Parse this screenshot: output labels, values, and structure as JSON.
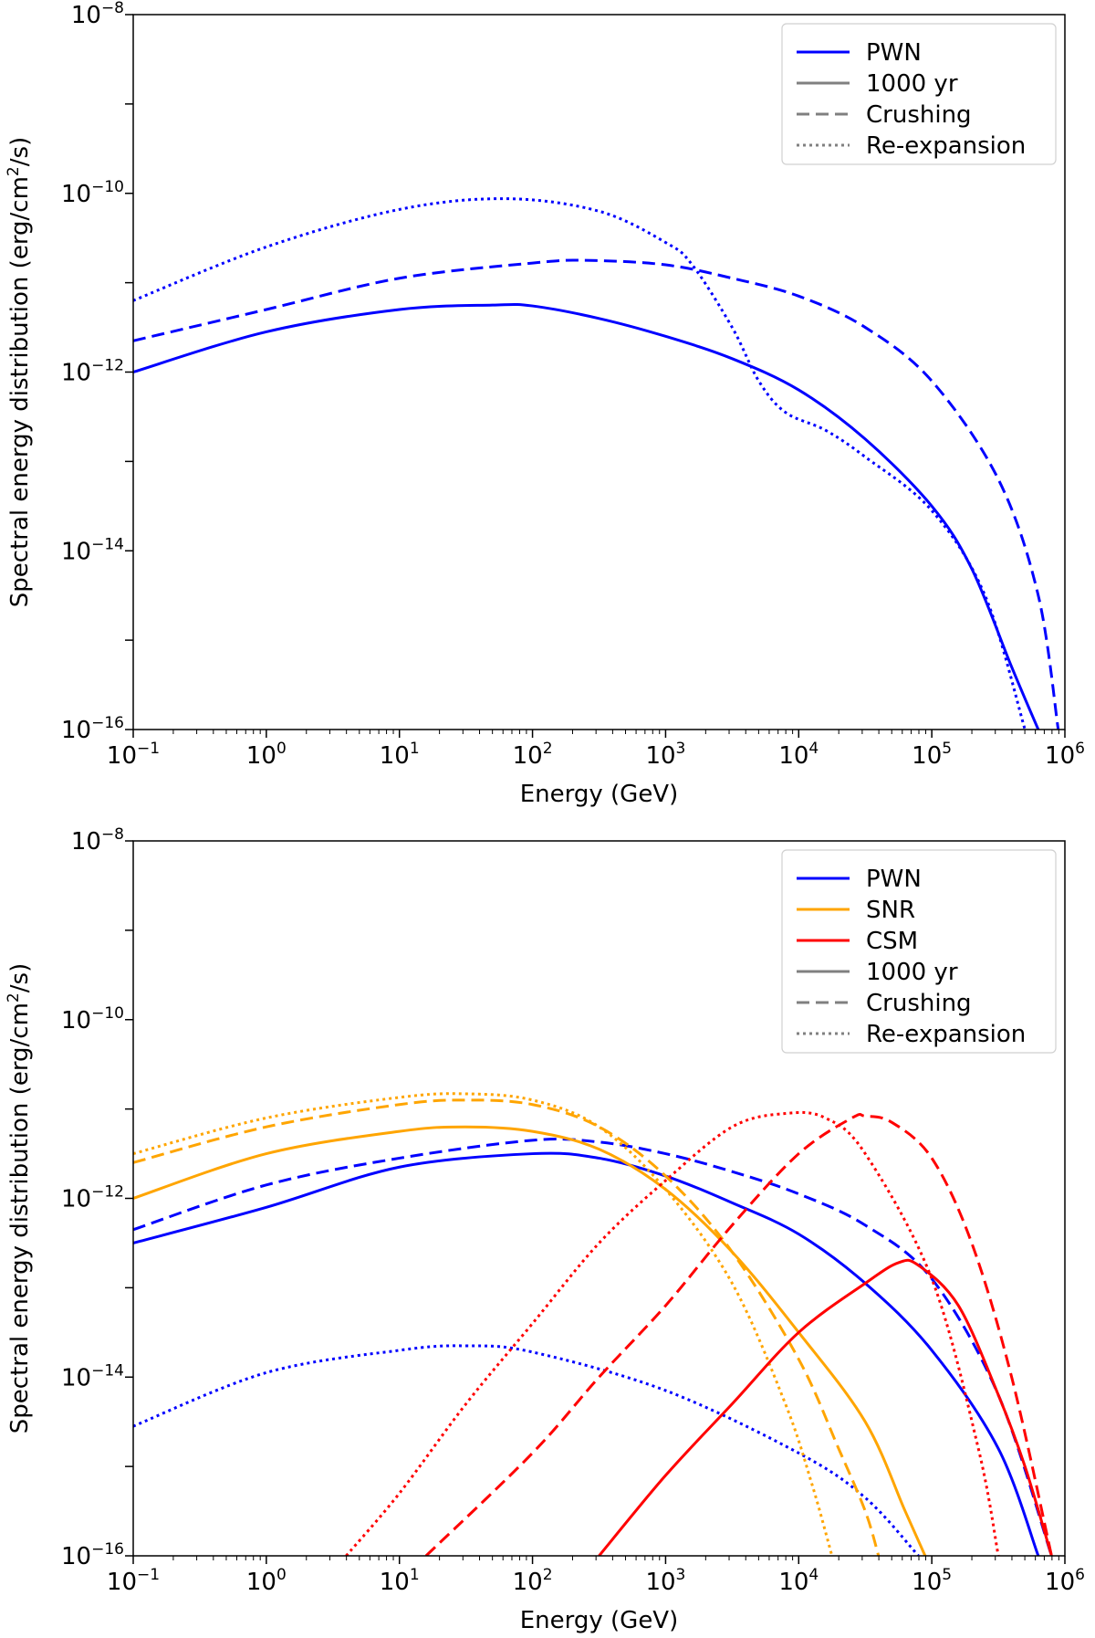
{
  "colors": {
    "PWN": "#0000ff",
    "SNR": "#ffa500",
    "CSM": "#ff0000",
    "neutral": "#808080"
  },
  "chart_data": [
    {
      "type": "line",
      "title": "",
      "xlabel": "Energy (GeV)",
      "ylabel_parts": {
        "pre": "Spectral energy distribution (erg/cm",
        "sup": "2",
        "post": "/s)"
      },
      "xscale": "log",
      "yscale": "log",
      "xlim_exp": [
        -1,
        6
      ],
      "ylim_exp": [
        -16,
        -8
      ],
      "x_ticks": [
        {
          "base": "10",
          "exp": "−1"
        },
        {
          "base": "10",
          "exp": "0"
        },
        {
          "base": "10",
          "exp": "1"
        },
        {
          "base": "10",
          "exp": "2"
        },
        {
          "base": "10",
          "exp": "3"
        },
        {
          "base": "10",
          "exp": "4"
        },
        {
          "base": "10",
          "exp": "5"
        },
        {
          "base": "10",
          "exp": "6"
        }
      ],
      "y_ticks": [
        {
          "value_exp": -16,
          "base": "10",
          "exp": "−16"
        },
        {
          "value_exp": -14,
          "base": "10",
          "exp": "−14"
        },
        {
          "value_exp": -12,
          "base": "10",
          "exp": "−12"
        },
        {
          "value_exp": -10,
          "base": "10",
          "exp": "−10"
        },
        {
          "value_exp": -8,
          "base": "10",
          "exp": "−8"
        }
      ],
      "legend": [
        "PWN",
        "1000 yr",
        "Crushing",
        "Re-expansion"
      ],
      "legend_styles": [
        "PWN",
        "solid",
        "dashed",
        "dotted"
      ],
      "series": [
        {
          "name": "PWN",
          "phase": "1000 yr",
          "log_x": [
            -1,
            0,
            1,
            1.7,
            2,
            2.5,
            3,
            3.5,
            4,
            4.5,
            5,
            5.3,
            5.6,
            5.8
          ],
          "log_y": [
            -12,
            -11.55,
            -11.3,
            -11.25,
            -11.26,
            -11.4,
            -11.6,
            -11.85,
            -12.2,
            -12.75,
            -13.5,
            -14.2,
            -15.3,
            -16
          ]
        },
        {
          "name": "PWN",
          "phase": "Crushing",
          "log_x": [
            -1,
            0,
            1,
            2,
            2.4,
            3,
            3.5,
            4,
            4.5,
            5,
            5.5,
            5.8,
            5.95
          ],
          "log_y": [
            -11.65,
            -11.3,
            -10.95,
            -10.78,
            -10.75,
            -10.8,
            -10.95,
            -11.15,
            -11.5,
            -12.1,
            -13.2,
            -14.5,
            -16
          ]
        },
        {
          "name": "PWN",
          "phase": "Re-expansion",
          "log_x": [
            -1,
            0,
            1,
            1.8,
            2.5,
            3,
            3.2,
            3.5,
            3.7,
            3.9,
            4.2,
            4.5,
            5,
            5.4,
            5.7
          ],
          "log_y": [
            -11.2,
            -10.6,
            -10.18,
            -10.06,
            -10.2,
            -10.55,
            -10.8,
            -11.5,
            -12.1,
            -12.45,
            -12.65,
            -12.95,
            -13.55,
            -14.5,
            -16
          ]
        }
      ]
    },
    {
      "type": "line",
      "title": "",
      "xlabel": "Energy (GeV)",
      "ylabel_parts": {
        "pre": "Spectral energy distribution (erg/cm",
        "sup": "2",
        "post": "/s)"
      },
      "xscale": "log",
      "yscale": "log",
      "xlim_exp": [
        -1,
        6
      ],
      "ylim_exp": [
        -16,
        -8
      ],
      "x_ticks": [
        {
          "base": "10",
          "exp": "−1"
        },
        {
          "base": "10",
          "exp": "0"
        },
        {
          "base": "10",
          "exp": "1"
        },
        {
          "base": "10",
          "exp": "2"
        },
        {
          "base": "10",
          "exp": "3"
        },
        {
          "base": "10",
          "exp": "4"
        },
        {
          "base": "10",
          "exp": "5"
        },
        {
          "base": "10",
          "exp": "6"
        }
      ],
      "y_ticks": [
        {
          "value_exp": -16,
          "base": "10",
          "exp": "−16"
        },
        {
          "value_exp": -14,
          "base": "10",
          "exp": "−14"
        },
        {
          "value_exp": -12,
          "base": "10",
          "exp": "−12"
        },
        {
          "value_exp": -10,
          "base": "10",
          "exp": "−10"
        },
        {
          "value_exp": -8,
          "base": "10",
          "exp": "−8"
        }
      ],
      "legend": [
        "PWN",
        "SNR",
        "CSM",
        "1000 yr",
        "Crushing",
        "Re-expansion"
      ],
      "legend_styles": [
        "PWN",
        "SNR",
        "CSM",
        "solid",
        "dashed",
        "dotted"
      ],
      "series": [
        {
          "name": "PWN",
          "phase": "1000 yr",
          "log_x": [
            -1,
            0,
            1,
            2,
            2.5,
            3,
            3.5,
            4,
            4.5,
            5,
            5.5,
            5.8
          ],
          "log_y": [
            -12.5,
            -12.1,
            -11.65,
            -11.5,
            -11.55,
            -11.75,
            -12.05,
            -12.4,
            -12.95,
            -13.7,
            -14.8,
            -16
          ]
        },
        {
          "name": "PWN",
          "phase": "Crushing",
          "log_x": [
            -1,
            0,
            1,
            2,
            2.5,
            3,
            3.5,
            4,
            4.5,
            5,
            5.5,
            5.9
          ],
          "log_y": [
            -12.35,
            -11.85,
            -11.55,
            -11.35,
            -11.37,
            -11.5,
            -11.7,
            -11.95,
            -12.3,
            -12.9,
            -14.2,
            -16
          ]
        },
        {
          "name": "PWN",
          "phase": "Re-expansion",
          "log_x": [
            -1,
            0,
            1,
            1.5,
            2,
            3,
            4,
            4.5,
            4.9
          ],
          "log_y": [
            -14.55,
            -13.95,
            -13.7,
            -13.65,
            -13.72,
            -14.15,
            -14.85,
            -15.35,
            -16
          ]
        },
        {
          "name": "SNR",
          "phase": "1000 yr",
          "log_x": [
            -1,
            0,
            1,
            1.5,
            2,
            2.5,
            3,
            3.5,
            4,
            4.5,
            4.8,
            4.95
          ],
          "log_y": [
            -12,
            -11.5,
            -11.25,
            -11.2,
            -11.25,
            -11.45,
            -11.9,
            -12.6,
            -13.5,
            -14.5,
            -15.5,
            -16
          ]
        },
        {
          "name": "SNR",
          "phase": "Crushing",
          "log_x": [
            -1,
            0,
            1,
            1.5,
            2,
            2.5,
            3,
            3.5,
            4,
            4.3,
            4.5,
            4.6
          ],
          "log_y": [
            -11.6,
            -11.2,
            -10.95,
            -10.9,
            -10.95,
            -11.2,
            -11.75,
            -12.6,
            -13.8,
            -14.8,
            -15.5,
            -16
          ]
        },
        {
          "name": "SNR",
          "phase": "Re-expansion",
          "log_x": [
            -1,
            0,
            1,
            1.5,
            2,
            2.5,
            3,
            3.5,
            3.9,
            4.1,
            4.25
          ],
          "log_y": [
            -11.5,
            -11.1,
            -10.87,
            -10.83,
            -10.9,
            -11.2,
            -11.9,
            -12.95,
            -14.3,
            -15.2,
            -16
          ]
        },
        {
          "name": "CSM",
          "phase": "1000 yr",
          "log_x": [
            2.5,
            3,
            3.5,
            4,
            4.5,
            4.75,
            4.9,
            5.2,
            5.5,
            5.7,
            5.9
          ],
          "log_y": [
            -16,
            -15.1,
            -14.3,
            -13.5,
            -12.95,
            -12.72,
            -12.75,
            -13.2,
            -14.2,
            -15,
            -16
          ]
        },
        {
          "name": "CSM",
          "phase": "Crushing",
          "log_x": [
            1.2,
            2,
            2.5,
            3,
            3.5,
            4,
            4.4,
            4.5,
            4.7,
            5,
            5.3,
            5.6,
            5.9
          ],
          "log_y": [
            -16,
            -14.85,
            -14,
            -13.2,
            -12.3,
            -11.5,
            -11.1,
            -11.08,
            -11.15,
            -11.55,
            -12.5,
            -14,
            -16
          ]
        },
        {
          "name": "CSM",
          "phase": "Re-expansion",
          "log_x": [
            0.6,
            1,
            1.5,
            2,
            2.5,
            3,
            3.5,
            3.9,
            4.2,
            4.5,
            5,
            5.35,
            5.5
          ],
          "log_y": [
            -16,
            -15.3,
            -14.3,
            -13.4,
            -12.5,
            -11.8,
            -11.2,
            -11.05,
            -11.1,
            -11.5,
            -12.9,
            -14.8,
            -16
          ]
        }
      ]
    }
  ]
}
